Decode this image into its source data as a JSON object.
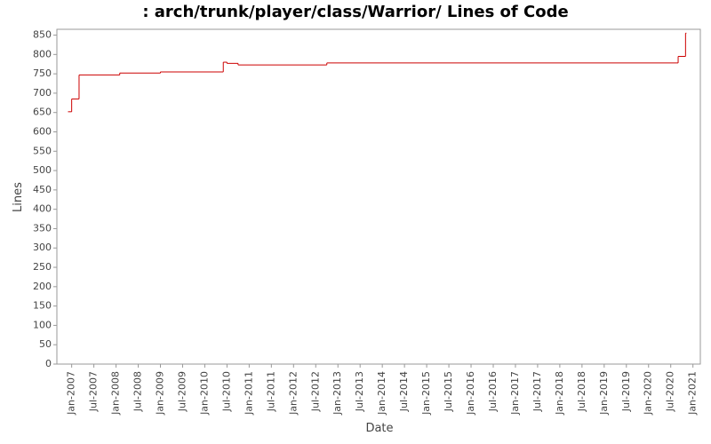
{
  "chart_data": {
    "type": "step",
    "title": ": arch/trunk/player/class/Warrior/ Lines of Code",
    "x_label": "Date",
    "y_label": "Lines",
    "series": [
      {
        "name": "Lines",
        "color": "#cc0000",
        "x": [
          "2006-12",
          "2007-01",
          "2007-03",
          "2008-02",
          "2009-01",
          "2010-06",
          "2010-07",
          "2010-10",
          "2012-10",
          "2020-09",
          "2020-11"
        ],
        "values": [
          652,
          685,
          747,
          752,
          755,
          780,
          777,
          773,
          778,
          795,
          855
        ]
      }
    ],
    "xlim": [
      "2006-09",
      "2021-03"
    ],
    "xticks": [
      {
        "value": "2007-01",
        "label": "Jan-2007"
      },
      {
        "value": "2007-07",
        "label": "Jul-2007"
      },
      {
        "value": "2008-01",
        "label": "Jan-2008"
      },
      {
        "value": "2008-07",
        "label": "Jul-2008"
      },
      {
        "value": "2009-01",
        "label": "Jan-2009"
      },
      {
        "value": "2009-07",
        "label": "Jul-2009"
      },
      {
        "value": "2010-01",
        "label": "Jan-2010"
      },
      {
        "value": "2010-07",
        "label": "Jul-2010"
      },
      {
        "value": "2011-01",
        "label": "Jan-2011"
      },
      {
        "value": "2011-07",
        "label": "Jul-2011"
      },
      {
        "value": "2012-01",
        "label": "Jan-2012"
      },
      {
        "value": "2012-07",
        "label": "Jul-2012"
      },
      {
        "value": "2013-01",
        "label": "Jan-2013"
      },
      {
        "value": "2013-07",
        "label": "Jul-2013"
      },
      {
        "value": "2014-01",
        "label": "Jan-2014"
      },
      {
        "value": "2014-07",
        "label": "Jul-2014"
      },
      {
        "value": "2015-01",
        "label": "Jan-2015"
      },
      {
        "value": "2015-07",
        "label": "Jul-2015"
      },
      {
        "value": "2016-01",
        "label": "Jan-2016"
      },
      {
        "value": "2016-07",
        "label": "Jul-2016"
      },
      {
        "value": "2017-01",
        "label": "Jan-2017"
      },
      {
        "value": "2017-07",
        "label": "Jul-2017"
      },
      {
        "value": "2018-01",
        "label": "Jan-2018"
      },
      {
        "value": "2018-07",
        "label": "Jul-2018"
      },
      {
        "value": "2019-01",
        "label": "Jan-2019"
      },
      {
        "value": "2019-07",
        "label": "Jul-2019"
      },
      {
        "value": "2020-01",
        "label": "Jan-2020"
      },
      {
        "value": "2020-07",
        "label": "Jul-2020"
      },
      {
        "value": "2021-01",
        "label": "Jan-2021"
      }
    ],
    "ylim": [
      0,
      865
    ],
    "yticks": [
      0,
      50,
      100,
      150,
      200,
      250,
      300,
      350,
      400,
      450,
      500,
      550,
      600,
      650,
      700,
      750,
      800,
      850
    ],
    "grid": false
  }
}
